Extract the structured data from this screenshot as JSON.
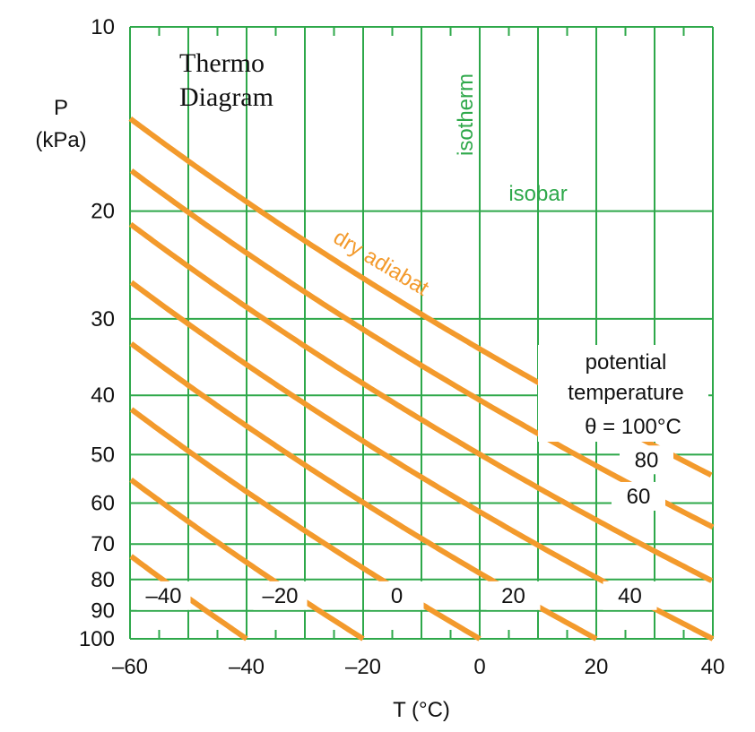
{
  "chart_data": {
    "type": "line",
    "title_lines": [
      "Thermo",
      "Diagram"
    ],
    "xlabel": "T (°C)",
    "ylabel_lines": [
      "P",
      "(kPa)"
    ],
    "xlim": [
      -60,
      40
    ],
    "ylim": [
      100,
      10
    ],
    "y_scale": "log",
    "grid": true,
    "x_ticks": [
      -60,
      -40,
      -20,
      0,
      20,
      40
    ],
    "x_tick_labels": [
      "–60",
      "–40",
      "–20",
      "0",
      "20",
      "40"
    ],
    "x_minor_step": 5,
    "y_ticks": [
      10,
      20,
      30,
      40,
      50,
      60,
      70,
      80,
      90,
      100
    ],
    "y_tick_labels": [
      "10",
      "20",
      "30",
      "40",
      "50",
      "60",
      "70",
      "80",
      "90",
      "100"
    ],
    "isotherm_label": "isotherm",
    "isobar_label": "isobar",
    "adiabat_label": "dry adiabat",
    "potential_temperature_lines": [
      "potential",
      "temperature",
      "θ = 100°C"
    ],
    "series": [
      {
        "theta": -40,
        "label": "–40"
      },
      {
        "theta": -20,
        "label": "–20"
      },
      {
        "theta": 0,
        "label": "0"
      },
      {
        "theta": 20,
        "label": "20"
      },
      {
        "theta": 40,
        "label": "40"
      },
      {
        "theta": 60,
        "label": "60"
      },
      {
        "theta": 80,
        "label": "80"
      },
      {
        "theta": 100,
        "label": ""
      }
    ],
    "colors": {
      "grid": "#2ea84a",
      "adiabat": "#f39a2c",
      "text": "#111111"
    }
  }
}
